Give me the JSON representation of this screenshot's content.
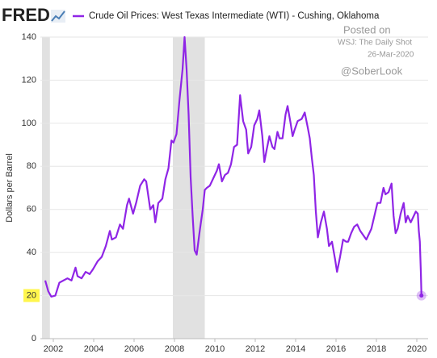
{
  "chart_data": {
    "type": "line",
    "logo": "FRED",
    "ylabel": "Dollars per Barrel",
    "annotations": [
      "Posted on",
      "WSJ: The Daily Shot",
      "26-Mar-2020",
      "@SoberLook"
    ],
    "x": [
      2001.6,
      2001.75,
      2001.9,
      2002.1,
      2002.3,
      2002.5,
      2002.7,
      2002.9,
      2003.1,
      2003.2,
      2003.4,
      2003.6,
      2003.8,
      2003.95,
      2004.2,
      2004.4,
      2004.6,
      2004.8,
      2004.9,
      2005.1,
      2005.3,
      2005.45,
      2005.65,
      2005.75,
      2005.95,
      2006.1,
      2006.3,
      2006.5,
      2006.6,
      2006.8,
      2006.95,
      2007.05,
      2007.2,
      2007.4,
      2007.55,
      2007.7,
      2007.85,
      2007.95,
      2008.1,
      2008.25,
      2008.4,
      2008.5,
      2008.6,
      2008.7,
      2008.8,
      2008.9,
      2009.0,
      2009.1,
      2009.25,
      2009.4,
      2009.5,
      2009.6,
      2009.75,
      2009.95,
      2010.1,
      2010.2,
      2010.35,
      2010.5,
      2010.65,
      2010.8,
      2010.95,
      2011.1,
      2011.25,
      2011.4,
      2011.55,
      2011.65,
      2011.8,
      2011.95,
      2012.1,
      2012.2,
      2012.35,
      2012.45,
      2012.55,
      2012.7,
      2012.85,
      2012.95,
      2013.1,
      2013.2,
      2013.35,
      2013.5,
      2013.6,
      2013.75,
      2013.85,
      2013.95,
      2014.1,
      2014.3,
      2014.45,
      2014.6,
      2014.7,
      2014.8,
      2014.9,
      2015.0,
      2015.1,
      2015.25,
      2015.4,
      2015.55,
      2015.65,
      2015.8,
      2015.95,
      2016.05,
      2016.2,
      2016.35,
      2016.5,
      2016.6,
      2016.75,
      2016.9,
      2017.05,
      2017.2,
      2017.35,
      2017.5,
      2017.6,
      2017.75,
      2017.9,
      2018.05,
      2018.2,
      2018.35,
      2018.45,
      2018.6,
      2018.75,
      2018.85,
      2018.95,
      2019.05,
      2019.2,
      2019.35,
      2019.45,
      2019.55,
      2019.7,
      2019.85,
      2019.95,
      2020.05,
      2020.1,
      2020.15,
      2020.2,
      2020.23
    ],
    "series": [
      {
        "name": "Crude Oil Prices: West Texas Intermediate (WTI) - Cushing, Oklahoma",
        "color": "#8f25e6",
        "values": [
          27,
          22,
          19.5,
          20,
          26,
          27,
          28,
          27,
          33,
          29,
          28,
          31,
          30,
          32,
          36,
          38,
          43,
          50,
          46,
          47,
          53,
          51,
          62,
          65,
          58,
          63,
          71,
          74,
          73,
          60,
          62,
          54,
          63,
          65,
          74,
          79,
          92,
          91,
          95,
          111,
          125,
          140,
          125,
          104,
          75,
          57,
          41,
          39,
          50,
          60,
          69,
          70,
          71,
          75,
          78,
          81,
          73,
          76,
          77,
          81,
          89,
          90,
          113,
          101,
          97,
          86,
          89,
          99,
          102,
          106,
          94,
          82,
          87,
          94,
          89,
          88,
          96,
          93,
          93,
          104,
          108,
          100,
          94,
          97,
          101,
          102,
          105,
          98,
          93,
          84,
          76,
          59,
          47,
          54,
          59,
          51,
          43,
          45,
          37,
          31,
          38,
          46,
          45,
          45,
          49,
          52,
          53,
          50,
          48,
          46,
          48,
          51,
          57,
          63,
          63,
          70,
          67,
          68,
          72,
          57,
          49,
          51,
          58,
          63,
          54,
          57,
          54,
          57,
          59,
          58,
          50,
          45,
          31,
          20
        ]
      }
    ],
    "recessions": [
      [
        2001.44,
        2001.83
      ],
      [
        2007.92,
        2009.5
      ]
    ],
    "xlim": [
      2001.36,
      2020.56
    ],
    "xticks": [
      2002,
      2004,
      2006,
      2008,
      2010,
      2012,
      2014,
      2016,
      2018,
      2020
    ],
    "ylim": [
      0,
      140
    ],
    "yticks": [
      0,
      20,
      40,
      60,
      80,
      100,
      120,
      140
    ],
    "grid": true,
    "highlighted_ytick": 20,
    "end_marker": true
  }
}
